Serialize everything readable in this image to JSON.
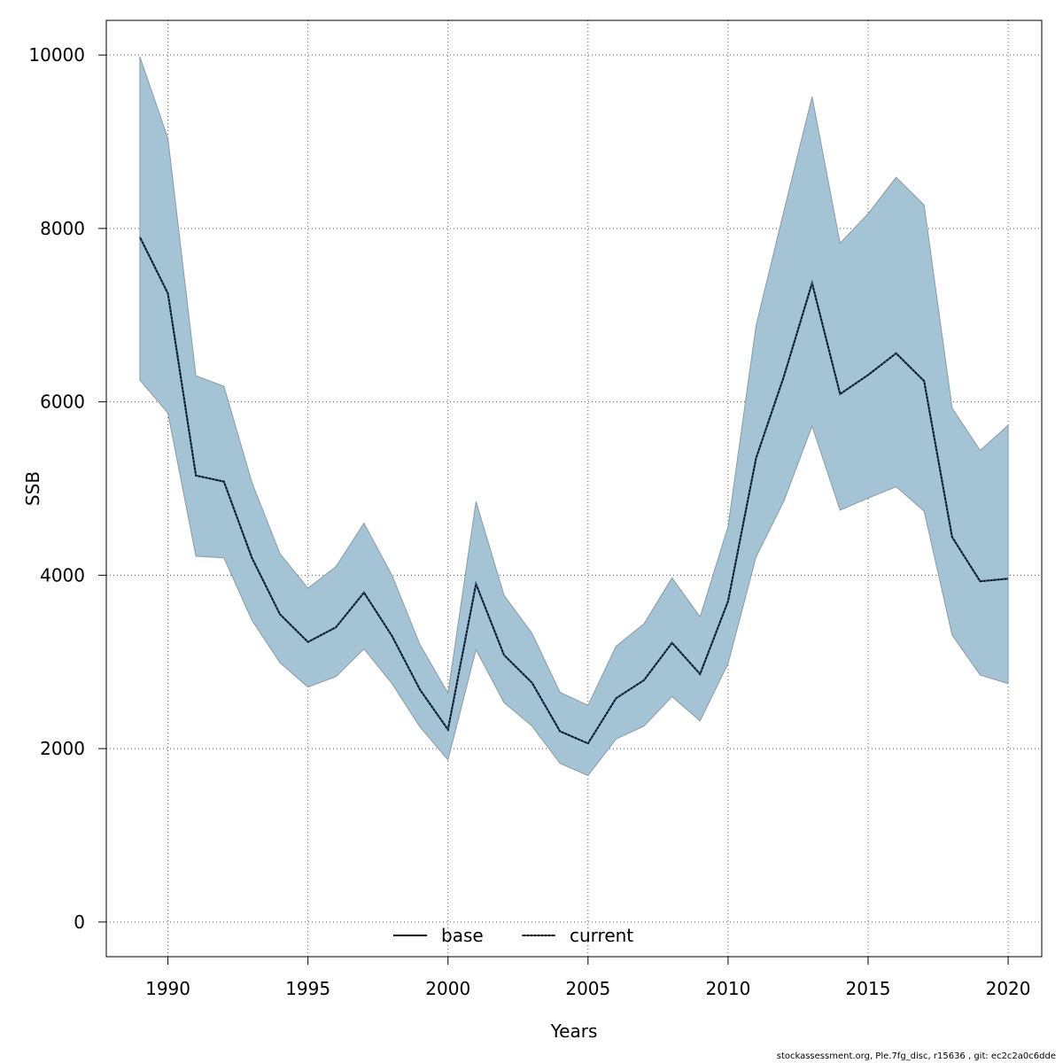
{
  "chart_data": {
    "type": "area",
    "title": "",
    "xlabel": "Years",
    "ylabel": "SSB",
    "xlim": [
      1987.8,
      2021.2
    ],
    "ylim": [
      -400,
      10400
    ],
    "x_ticks": [
      1990,
      1995,
      2000,
      2005,
      2010,
      2015,
      2020
    ],
    "y_ticks": [
      0,
      2000,
      4000,
      6000,
      8000,
      10000
    ],
    "grid": true,
    "legend_position": "bottom-center",
    "legend": [
      {
        "label": "base",
        "style": "solid",
        "color": "#000000"
      },
      {
        "label": "current",
        "style": "dotted",
        "color": "#1f5a8a"
      }
    ],
    "x": [
      1989,
      1990,
      1991,
      1992,
      1993,
      1994,
      1995,
      1996,
      1997,
      1998,
      1999,
      2000,
      2001,
      2002,
      2003,
      2004,
      2005,
      2006,
      2007,
      2008,
      2009,
      2010,
      2011,
      2012,
      2013,
      2014,
      2015,
      2016,
      2017,
      2018,
      2019,
      2020
    ],
    "series": [
      {
        "name": "current",
        "values": [
          7900,
          7250,
          5150,
          5080,
          4200,
          3550,
          3230,
          3400,
          3800,
          3300,
          2680,
          2220,
          3900,
          3080,
          2760,
          2200,
          2060,
          2580,
          2790,
          3220,
          2860,
          3700,
          5350,
          6300,
          7370,
          6090,
          6310,
          6560,
          6240,
          4440,
          3930,
          3960
        ],
        "lower": [
          6250,
          5870,
          4220,
          4200,
          3480,
          2990,
          2710,
          2830,
          3150,
          2750,
          2250,
          1870,
          3140,
          2530,
          2260,
          1830,
          1690,
          2110,
          2260,
          2600,
          2320,
          2980,
          4210,
          4860,
          5720,
          4750,
          4890,
          5020,
          4740,
          3310,
          2850,
          2750
        ],
        "upper": [
          9980,
          9040,
          6300,
          6180,
          5070,
          4250,
          3850,
          4100,
          4600,
          4000,
          3200,
          2640,
          4850,
          3770,
          3330,
          2650,
          2500,
          3180,
          3440,
          3970,
          3520,
          4560,
          6880,
          8210,
          9520,
          7830,
          8170,
          8590,
          8270,
          5930,
          5440,
          5730
        ]
      }
    ],
    "colors": {
      "band_fill": "#a4c4d5",
      "band_stroke": "#8a9aa5",
      "grid": "#555555"
    }
  },
  "footer": "stockassessment.org, Ple.7fg_disc, r15636 , git: ec2c2a0c6dde"
}
